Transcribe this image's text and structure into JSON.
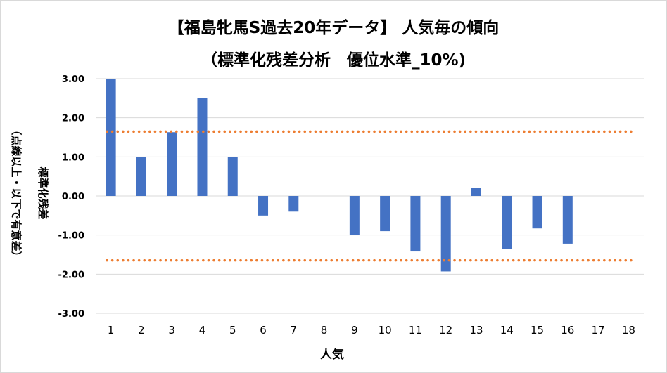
{
  "chart_data": {
    "type": "bar",
    "title_line1": "【福島牝馬S過去20年データ】 人気毎の傾向",
    "title_line2": "（標準化残差分析　優位水準_10%)",
    "xlabel": "人気",
    "ylabel_main": "標準化残差",
    "ylabel_sub": "（点線以上・以下で有意差）",
    "categories": [
      "1",
      "2",
      "3",
      "4",
      "5",
      "6",
      "7",
      "8",
      "9",
      "10",
      "11",
      "12",
      "13",
      "14",
      "15",
      "16",
      "17",
      "18"
    ],
    "values": [
      3.0,
      1.0,
      1.63,
      2.5,
      1.0,
      -0.5,
      -0.4,
      0.0,
      -1.0,
      -0.9,
      -1.42,
      -1.93,
      0.2,
      -1.35,
      -0.83,
      -1.22,
      0.0,
      0.0
    ],
    "yticks": [
      "3.00",
      "2.00",
      "1.00",
      "0.00",
      "-1.00",
      "-2.00",
      "-3.00"
    ],
    "ylim": [
      -3,
      3
    ],
    "threshold_upper": 1.645,
    "threshold_lower": -1.645,
    "bar_color": "#4472c4",
    "threshold_color": "#ed7d31",
    "grid": true
  }
}
